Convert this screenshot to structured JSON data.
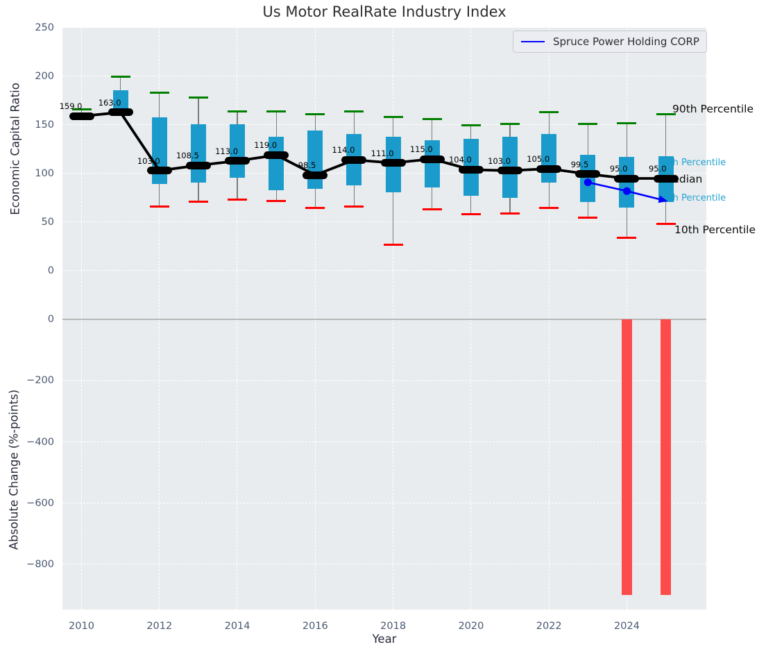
{
  "title": "Us Motor RealRate Industry Index",
  "legend": {
    "label": "Spruce Power Holding CORP"
  },
  "axes": {
    "top": {
      "ylabel": "Economic Capital Ratio",
      "yticks": [
        250,
        200,
        150,
        100,
        50,
        0
      ]
    },
    "bottom": {
      "ylabel": "Absolute Change (%-points)",
      "yticks": [
        0,
        -200,
        -400,
        -600,
        -800
      ]
    },
    "x": {
      "label": "Year",
      "ticks": [
        2010,
        2012,
        2014,
        2016,
        2018,
        2020,
        2022,
        2024
      ]
    }
  },
  "annotations": {
    "p90": "90th Percentile",
    "p75": "75th Percentile",
    "median": "Median",
    "p25": "25th Percentile",
    "p10": "10th Percentile"
  },
  "chart_data": [
    {
      "type": "box",
      "title": "Us Motor RealRate Industry Index",
      "xlabel": "Year",
      "ylabel": "Economic Capital Ratio",
      "ylim": [
        -41,
        250
      ],
      "grid": true,
      "years": [
        2010,
        2011,
        2012,
        2013,
        2014,
        2015,
        2016,
        2017,
        2018,
        2019,
        2020,
        2021,
        2022,
        2023,
        2024,
        2025
      ],
      "p10": [
        156,
        163,
        66,
        71,
        73,
        72,
        65,
        66,
        27,
        63,
        58,
        59,
        65,
        55,
        34,
        48
      ],
      "q1": [
        156.5,
        163,
        89,
        91,
        96,
        83,
        84,
        88,
        81,
        86,
        77,
        75,
        91,
        71,
        65,
        71
      ],
      "median": [
        159,
        163,
        103,
        108.5,
        113,
        119,
        98.5,
        114,
        111,
        115,
        104,
        103,
        105,
        99.5,
        95,
        95
      ],
      "q3": [
        161,
        186,
        158,
        151,
        151,
        138,
        144,
        141,
        138,
        134,
        136,
        138,
        141,
        119,
        117,
        118
      ],
      "p90": [
        166,
        200,
        183,
        178,
        164,
        164,
        161,
        164,
        158,
        156,
        150,
        151,
        163,
        151,
        152,
        161
      ],
      "median_labels": [
        "159.0",
        "163.0",
        "103.0",
        "108.5",
        "113.0",
        "119.0",
        "98.5",
        "114.0",
        "111.0",
        "115.0",
        "104.0",
        "103.0",
        "105.0",
        "99.5",
        "95.0",
        "95.0"
      ],
      "series": [
        {
          "name": "Spruce Power Holding CORP",
          "x": [
            2023,
            2024,
            2025
          ],
          "values": [
            91,
            82,
            72
          ]
        }
      ]
    },
    {
      "type": "bar",
      "xlabel": "Year",
      "ylabel": "Absolute Change (%-points)",
      "ylim": [
        -946,
        29
      ],
      "x": [
        2024,
        2025
      ],
      "values": [
        -900,
        -900
      ]
    }
  ],
  "colors": {
    "box": "#1b9bcb",
    "p90_cap": "#008000",
    "p10_cap": "#ff0000",
    "median_line": "#000000",
    "whisker": "#7a7a7a",
    "company_line": "#0000ff",
    "bars": "#fb4b4b",
    "percentile_label": "#25a2d3",
    "plot_bg": "#e9ecee",
    "grid": "#ffffff"
  }
}
